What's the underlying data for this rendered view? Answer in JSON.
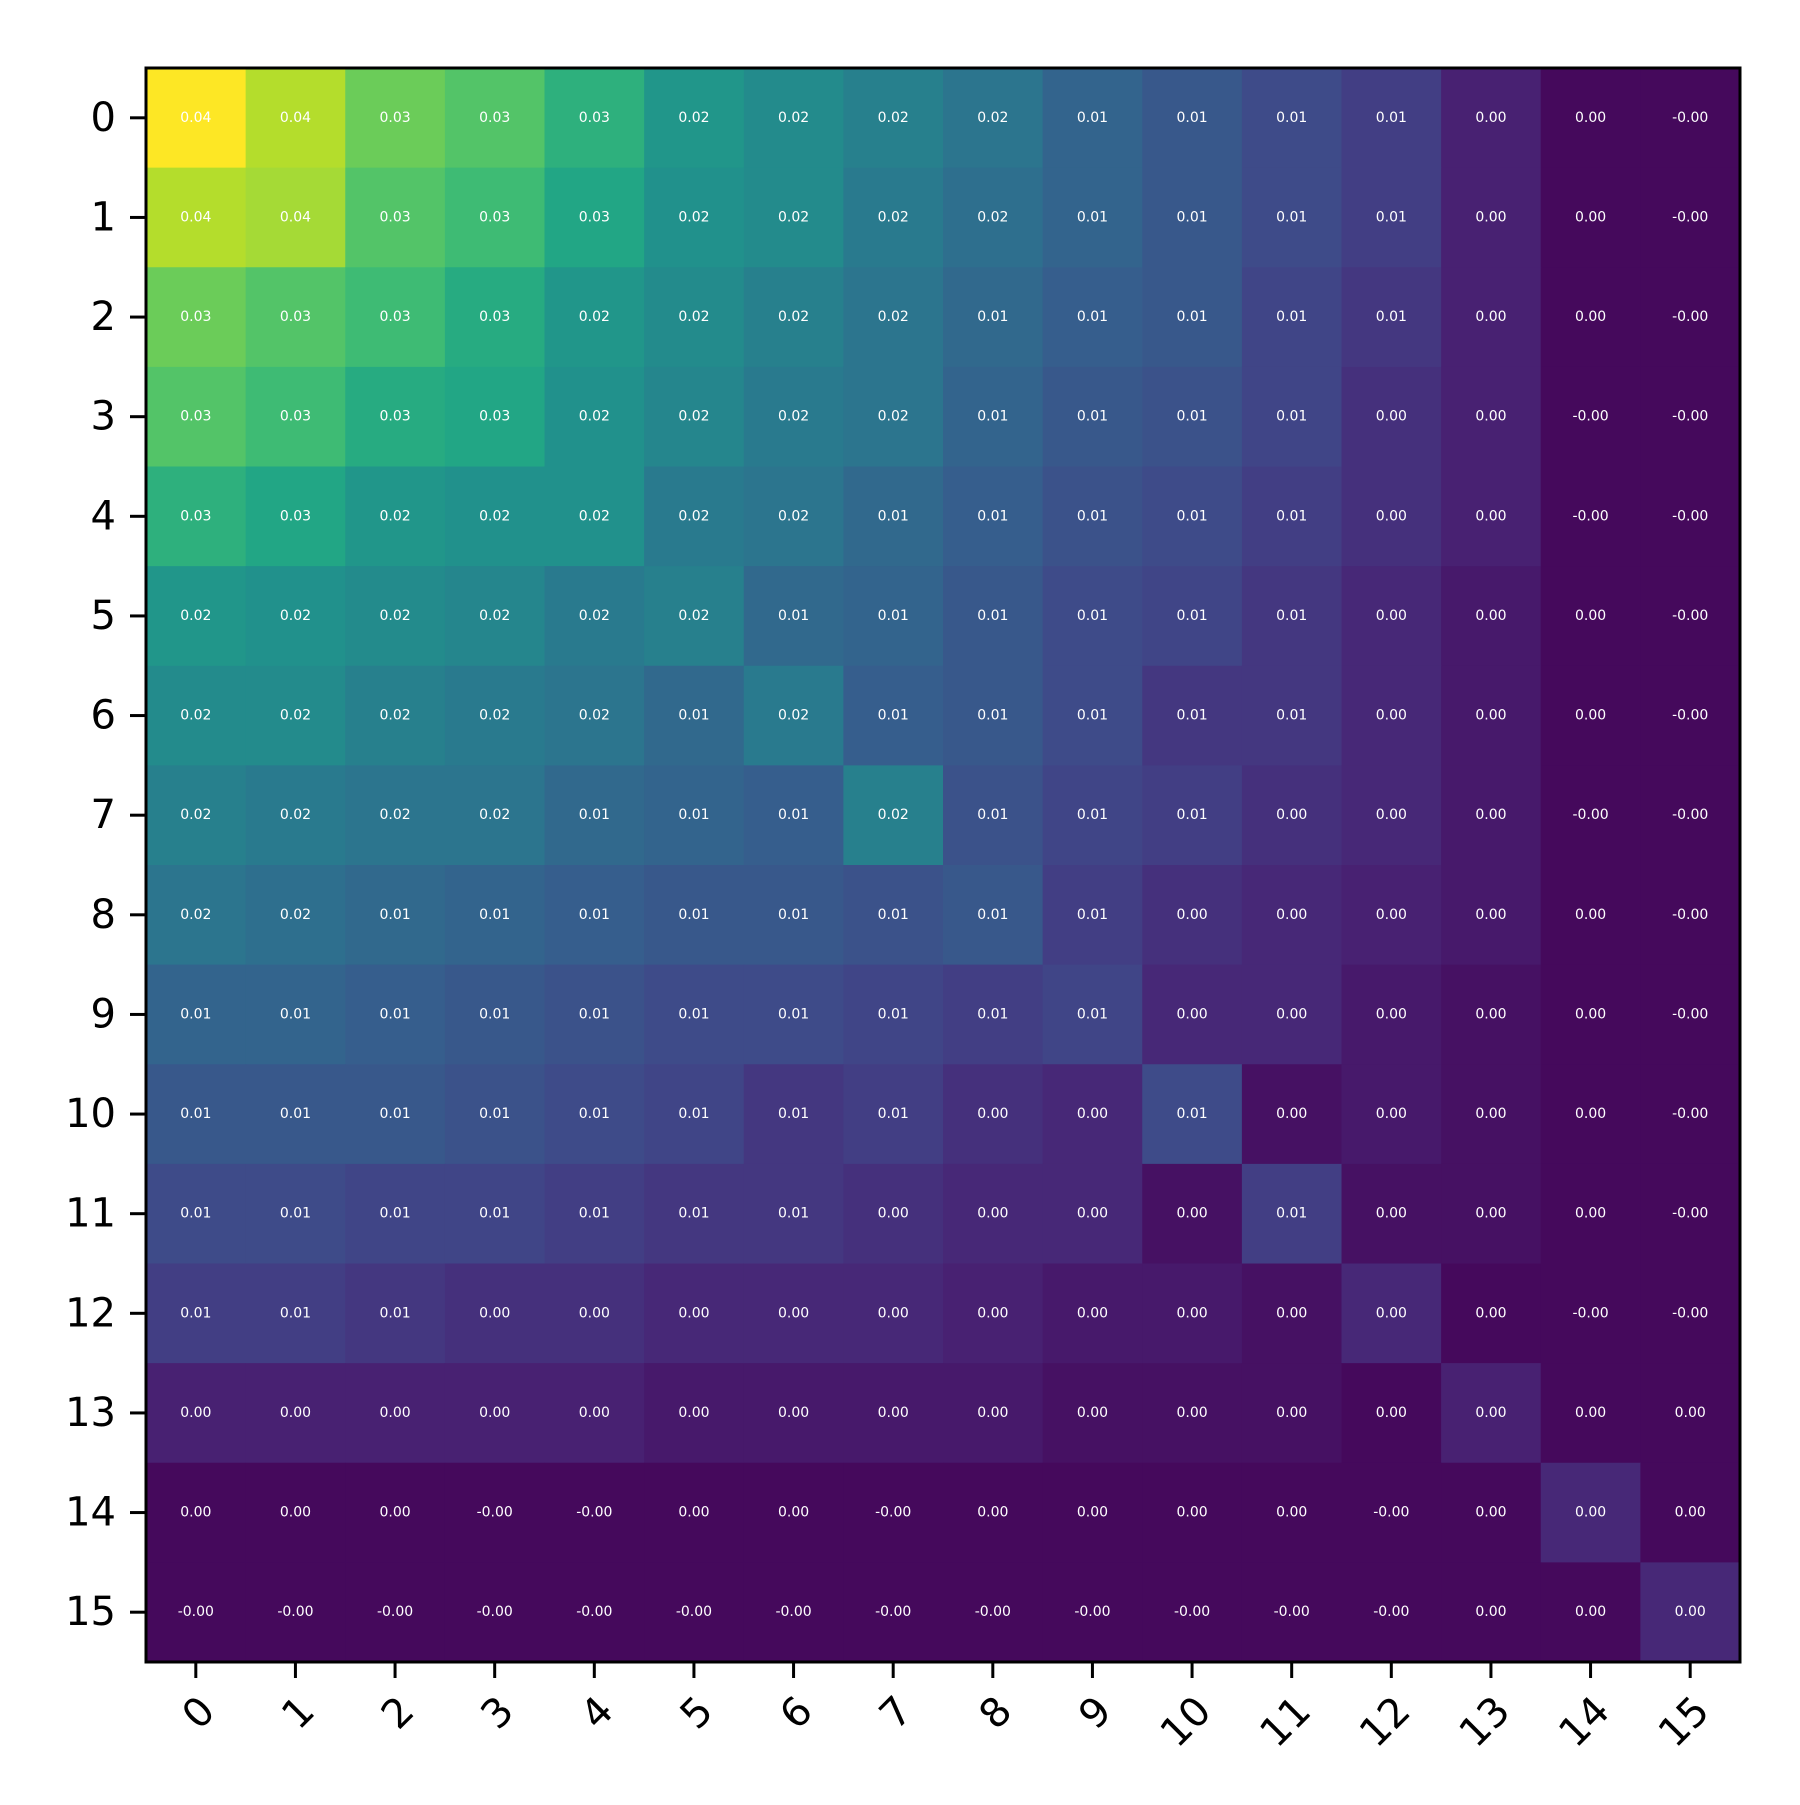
{
  "chart_data": {
    "type": "heatmap",
    "title": "",
    "xlabel": "",
    "ylabel": "",
    "colormap": "viridis",
    "value_range": [
      -0.001,
      0.043
    ],
    "cell_label_format": "2 decimals",
    "x_categories": [
      "0",
      "1",
      "2",
      "3",
      "4",
      "5",
      "6",
      "7",
      "8",
      "9",
      "10",
      "11",
      "12",
      "13",
      "14",
      "15"
    ],
    "y_categories": [
      "0",
      "1",
      "2",
      "3",
      "4",
      "5",
      "6",
      "7",
      "8",
      "9",
      "10",
      "11",
      "12",
      "13",
      "14",
      "15"
    ],
    "x_tick_rotation_deg": 45,
    "grid": false,
    "legend": "none",
    "values": [
      [
        0.043,
        0.038,
        0.033,
        0.031,
        0.027,
        0.022,
        0.02,
        0.018,
        0.016,
        0.013,
        0.011,
        0.009,
        0.007,
        0.003,
        0.0,
        -0.0
      ],
      [
        0.038,
        0.037,
        0.031,
        0.029,
        0.025,
        0.021,
        0.02,
        0.017,
        0.015,
        0.013,
        0.011,
        0.009,
        0.007,
        0.003,
        0.0,
        -0.0
      ],
      [
        0.033,
        0.031,
        0.029,
        0.026,
        0.022,
        0.02,
        0.018,
        0.016,
        0.014,
        0.012,
        0.011,
        0.008,
        0.006,
        0.003,
        0.0,
        -0.0
      ],
      [
        0.031,
        0.029,
        0.026,
        0.025,
        0.021,
        0.019,
        0.017,
        0.016,
        0.013,
        0.011,
        0.01,
        0.008,
        0.005,
        0.003,
        -0.0,
        -0.0
      ],
      [
        0.027,
        0.025,
        0.022,
        0.021,
        0.021,
        0.017,
        0.016,
        0.014,
        0.012,
        0.01,
        0.009,
        0.007,
        0.005,
        0.003,
        -0.0,
        -0.0
      ],
      [
        0.022,
        0.021,
        0.02,
        0.019,
        0.017,
        0.018,
        0.014,
        0.013,
        0.011,
        0.009,
        0.008,
        0.006,
        0.004,
        0.002,
        0.0,
        -0.0
      ],
      [
        0.02,
        0.02,
        0.018,
        0.017,
        0.016,
        0.014,
        0.017,
        0.012,
        0.011,
        0.009,
        0.006,
        0.006,
        0.004,
        0.002,
        0.0,
        -0.0
      ],
      [
        0.018,
        0.017,
        0.016,
        0.016,
        0.014,
        0.013,
        0.012,
        0.018,
        0.01,
        0.008,
        0.007,
        0.005,
        0.004,
        0.002,
        -0.0,
        -0.0
      ],
      [
        0.016,
        0.015,
        0.014,
        0.013,
        0.012,
        0.011,
        0.011,
        0.01,
        0.011,
        0.007,
        0.005,
        0.004,
        0.003,
        0.002,
        0.0,
        -0.0
      ],
      [
        0.013,
        0.013,
        0.012,
        0.011,
        0.01,
        0.009,
        0.009,
        0.008,
        0.007,
        0.008,
        0.004,
        0.004,
        0.002,
        0.001,
        0.0,
        -0.0
      ],
      [
        0.011,
        0.011,
        0.011,
        0.01,
        0.009,
        0.008,
        0.006,
        0.007,
        0.005,
        0.004,
        0.009,
        0.001,
        0.002,
        0.001,
        0.0,
        -0.0
      ],
      [
        0.009,
        0.009,
        0.008,
        0.008,
        0.007,
        0.006,
        0.006,
        0.005,
        0.004,
        0.004,
        0.001,
        0.007,
        0.001,
        0.001,
        0.0,
        -0.0
      ],
      [
        0.007,
        0.007,
        0.006,
        0.005,
        0.005,
        0.004,
        0.004,
        0.004,
        0.003,
        0.002,
        0.002,
        0.001,
        0.004,
        0.0,
        -0.0,
        -0.0
      ],
      [
        0.003,
        0.003,
        0.003,
        0.003,
        0.003,
        0.002,
        0.002,
        0.002,
        0.002,
        0.001,
        0.001,
        0.001,
        0.0,
        0.003,
        0.0,
        0.0
      ],
      [
        0.0,
        0.0,
        0.0,
        -0.0,
        -0.0,
        0.0,
        0.0,
        -0.0,
        0.0,
        0.0,
        0.0,
        0.0,
        -0.0,
        0.0,
        0.004,
        0.0
      ],
      [
        -0.0,
        -0.0,
        -0.0,
        -0.0,
        -0.0,
        -0.0,
        -0.0,
        -0.0,
        -0.0,
        -0.0,
        -0.0,
        -0.0,
        -0.0,
        0.0,
        0.0,
        0.004
      ]
    ],
    "cell_labels": [
      [
        "0.04",
        "0.04",
        "0.03",
        "0.03",
        "0.03",
        "0.02",
        "0.02",
        "0.02",
        "0.02",
        "0.01",
        "0.01",
        "0.01",
        "0.01",
        "0.00",
        "0.00",
        "-0.00"
      ],
      [
        "0.04",
        "0.04",
        "0.03",
        "0.03",
        "0.03",
        "0.02",
        "0.02",
        "0.02",
        "0.02",
        "0.01",
        "0.01",
        "0.01",
        "0.01",
        "0.00",
        "0.00",
        "-0.00"
      ],
      [
        "0.03",
        "0.03",
        "0.03",
        "0.03",
        "0.02",
        "0.02",
        "0.02",
        "0.02",
        "0.01",
        "0.01",
        "0.01",
        "0.01",
        "0.01",
        "0.00",
        "0.00",
        "-0.00"
      ],
      [
        "0.03",
        "0.03",
        "0.03",
        "0.03",
        "0.02",
        "0.02",
        "0.02",
        "0.02",
        "0.01",
        "0.01",
        "0.01",
        "0.01",
        "0.00",
        "0.00",
        "-0.00",
        "-0.00"
      ],
      [
        "0.03",
        "0.03",
        "0.02",
        "0.02",
        "0.02",
        "0.02",
        "0.02",
        "0.01",
        "0.01",
        "0.01",
        "0.01",
        "0.01",
        "0.00",
        "0.00",
        "-0.00",
        "-0.00"
      ],
      [
        "0.02",
        "0.02",
        "0.02",
        "0.02",
        "0.02",
        "0.02",
        "0.01",
        "0.01",
        "0.01",
        "0.01",
        "0.01",
        "0.01",
        "0.00",
        "0.00",
        "0.00",
        "-0.00"
      ],
      [
        "0.02",
        "0.02",
        "0.02",
        "0.02",
        "0.02",
        "0.01",
        "0.02",
        "0.01",
        "0.01",
        "0.01",
        "0.01",
        "0.01",
        "0.00",
        "0.00",
        "0.00",
        "-0.00"
      ],
      [
        "0.02",
        "0.02",
        "0.02",
        "0.02",
        "0.01",
        "0.01",
        "0.01",
        "0.02",
        "0.01",
        "0.01",
        "0.01",
        "0.00",
        "0.00",
        "0.00",
        "-0.00",
        "-0.00"
      ],
      [
        "0.02",
        "0.02",
        "0.01",
        "0.01",
        "0.01",
        "0.01",
        "0.01",
        "0.01",
        "0.01",
        "0.01",
        "0.00",
        "0.00",
        "0.00",
        "0.00",
        "0.00",
        "-0.00"
      ],
      [
        "0.01",
        "0.01",
        "0.01",
        "0.01",
        "0.01",
        "0.01",
        "0.01",
        "0.01",
        "0.01",
        "0.01",
        "0.00",
        "0.00",
        "0.00",
        "0.00",
        "0.00",
        "-0.00"
      ],
      [
        "0.01",
        "0.01",
        "0.01",
        "0.01",
        "0.01",
        "0.01",
        "0.01",
        "0.01",
        "0.00",
        "0.00",
        "0.01",
        "0.00",
        "0.00",
        "0.00",
        "0.00",
        "-0.00"
      ],
      [
        "0.01",
        "0.01",
        "0.01",
        "0.01",
        "0.01",
        "0.01",
        "0.01",
        "0.00",
        "0.00",
        "0.00",
        "0.00",
        "0.01",
        "0.00",
        "0.00",
        "0.00",
        "-0.00"
      ],
      [
        "0.01",
        "0.01",
        "0.01",
        "0.00",
        "0.00",
        "0.00",
        "0.00",
        "0.00",
        "0.00",
        "0.00",
        "0.00",
        "0.00",
        "0.00",
        "0.00",
        "-0.00",
        "-0.00"
      ],
      [
        "0.00",
        "0.00",
        "0.00",
        "0.00",
        "0.00",
        "0.00",
        "0.00",
        "0.00",
        "0.00",
        "0.00",
        "0.00",
        "0.00",
        "0.00",
        "0.00",
        "0.00",
        "0.00"
      ],
      [
        "0.00",
        "0.00",
        "0.00",
        "-0.00",
        "-0.00",
        "0.00",
        "0.00",
        "-0.00",
        "0.00",
        "0.00",
        "0.00",
        "0.00",
        "-0.00",
        "0.00",
        "0.00",
        "0.00"
      ],
      [
        "-0.00",
        "-0.00",
        "-0.00",
        "-0.00",
        "-0.00",
        "-0.00",
        "-0.00",
        "-0.00",
        "-0.00",
        "-0.00",
        "-0.00",
        "-0.00",
        "-0.00",
        "0.00",
        "0.00",
        "0.00"
      ]
    ]
  }
}
